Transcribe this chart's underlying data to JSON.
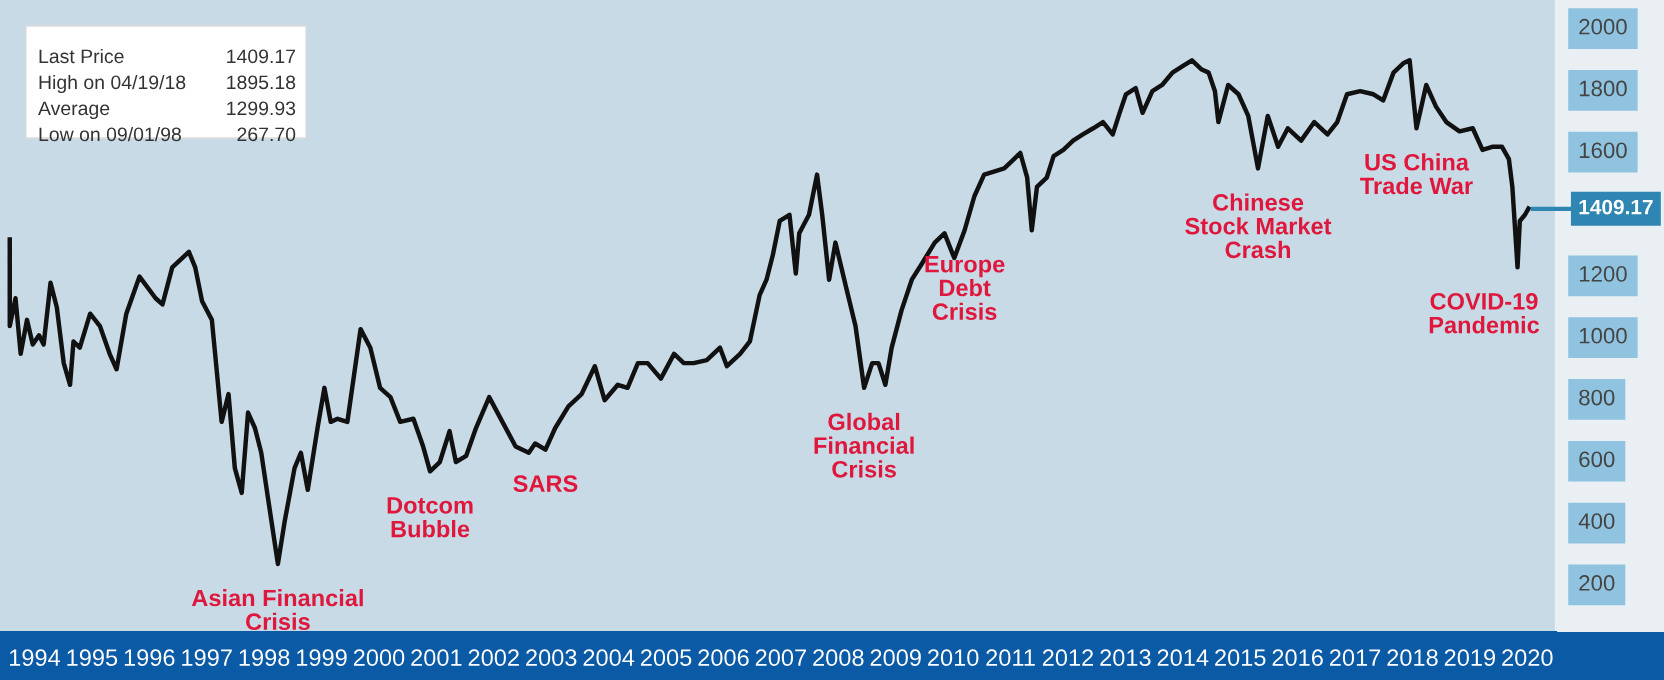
{
  "chart_data": {
    "type": "line",
    "x": [
      1993.97,
      1993.97,
      1994.07,
      1994.16,
      1994.27,
      1994.37,
      1994.48,
      1994.56,
      1994.68,
      1994.79,
      1994.91,
      1995.02,
      1995.08,
      1995.19,
      1995.37,
      1995.54,
      1995.71,
      1995.83,
      1996.0,
      1996.23,
      1996.51,
      1996.63,
      1996.8,
      1997.09,
      1997.2,
      1997.32,
      1997.49,
      1997.66,
      1997.78,
      1997.89,
      1998.01,
      1998.12,
      1998.24,
      1998.35,
      1998.47,
      1998.64,
      1998.76,
      1998.93,
      1999.04,
      1999.16,
      1999.33,
      1999.45,
      1999.56,
      1999.68,
      1999.85,
      2000.08,
      2000.25,
      2000.42,
      2000.6,
      2000.77,
      2001.0,
      2001.17,
      2001.29,
      2001.46,
      2001.63,
      2001.74,
      2001.92,
      2002.09,
      2002.32,
      2002.55,
      2002.78,
      2003.01,
      2003.12,
      2003.3,
      2003.47,
      2003.7,
      2003.93,
      2004.16,
      2004.33,
      2004.56,
      2004.73,
      2004.91,
      2005.08,
      2005.31,
      2005.54,
      2005.71,
      2005.88,
      2006.11,
      2006.34,
      2006.46,
      2006.69,
      2006.86,
      2007.03,
      2007.15,
      2007.26,
      2007.38,
      2007.55,
      2007.66,
      2007.72,
      2007.89,
      2008.03,
      2008.12,
      2008.24,
      2008.35,
      2008.53,
      2008.7,
      2008.85,
      2008.99,
      2009.1,
      2009.22,
      2009.33,
      2009.5,
      2009.68,
      2009.85,
      2010.08,
      2010.25,
      2010.42,
      2010.6,
      2010.77,
      2010.94,
      2011.11,
      2011.29,
      2011.46,
      2011.57,
      2011.69,
      2011.77,
      2011.86,
      2012.03,
      2012.15,
      2012.32,
      2012.49,
      2012.66,
      2012.84,
      2013.01,
      2013.18,
      2013.3,
      2013.41,
      2013.58,
      2013.7,
      2013.87,
      2014.04,
      2014.22,
      2014.39,
      2014.56,
      2014.73,
      2014.85,
      2014.96,
      2015.02,
      2015.19,
      2015.37,
      2015.54,
      2015.71,
      2015.88,
      2016.06,
      2016.23,
      2016.46,
      2016.69,
      2016.92,
      2017.09,
      2017.26,
      2017.49,
      2017.72,
      2017.89,
      2018.07,
      2018.24,
      2018.35,
      2018.47,
      2018.64,
      2018.81,
      2018.99,
      2019.22,
      2019.45,
      2019.62,
      2019.79,
      2019.96,
      2020.08,
      2020.14,
      2020.23,
      2020.27,
      2020.36,
      2020.42
    ],
    "series": [
      {
        "color": "#111111",
        "values": [
          1310,
          1030,
          1120,
          940,
          1050,
          970,
          1000,
          970,
          1170,
          1090,
          910,
          840,
          980,
          960,
          1070,
          1030,
          940,
          890,
          1070,
          1190,
          1120,
          1100,
          1220,
          1270,
          1220,
          1110,
          1050,
          720,
          810,
          570,
          490,
          750,
          700,
          620,
          470,
          260,
          400,
          570,
          620,
          500,
          700,
          830,
          720,
          730,
          720,
          1020,
          960,
          830,
          800,
          720,
          730,
          640,
          560,
          590,
          690,
          590,
          610,
          700,
          800,
          720,
          640,
          620,
          650,
          630,
          700,
          770,
          810,
          900,
          790,
          840,
          830,
          910,
          910,
          860,
          940,
          910,
          910,
          920,
          960,
          900,
          940,
          980,
          1130,
          1180,
          1260,
          1370,
          1390,
          1200,
          1330,
          1390,
          1520,
          1390,
          1180,
          1300,
          1160,
          1030,
          830,
          910,
          910,
          840,
          960,
          1080,
          1180,
          1230,
          1300,
          1330,
          1250,
          1340,
          1450,
          1520,
          1530,
          1540,
          1570,
          1590,
          1510,
          1340,
          1480,
          1510,
          1580,
          1600,
          1630,
          1650,
          1670,
          1690,
          1650,
          1720,
          1780,
          1800,
          1720,
          1790,
          1810,
          1850,
          1870,
          1890,
          1860,
          1850,
          1790,
          1690,
          1810,
          1780,
          1710,
          1540,
          1710,
          1610,
          1670,
          1630,
          1690,
          1650,
          1690,
          1780,
          1790,
          1780,
          1760,
          1850,
          1880,
          1890,
          1670,
          1810,
          1740,
          1690,
          1660,
          1670,
          1600,
          1610,
          1610,
          1570,
          1480,
          1220,
          1370,
          1390,
          1410
        ]
      }
    ],
    "xlim": [
      1993.8,
      2020.9
    ],
    "ylim": [
      40,
      2085
    ],
    "xticks": [
      {
        "value": 1994.4,
        "label": "1994"
      },
      {
        "value": 1995.4,
        "label": "1995"
      },
      {
        "value": 1996.4,
        "label": "1996"
      },
      {
        "value": 1997.4,
        "label": "1997"
      },
      {
        "value": 1998.4,
        "label": "1998"
      },
      {
        "value": 1999.4,
        "label": "1999"
      },
      {
        "value": 2000.4,
        "label": "2000"
      },
      {
        "value": 2001.4,
        "label": "2001"
      },
      {
        "value": 2002.4,
        "label": "2002"
      },
      {
        "value": 2003.4,
        "label": "2003"
      },
      {
        "value": 2004.4,
        "label": "2004"
      },
      {
        "value": 2005.4,
        "label": "2005"
      },
      {
        "value": 2006.4,
        "label": "2006"
      },
      {
        "value": 2007.4,
        "label": "2007"
      },
      {
        "value": 2008.4,
        "label": "2008"
      },
      {
        "value": 2009.4,
        "label": "2009"
      },
      {
        "value": 2010.4,
        "label": "2010"
      },
      {
        "value": 2011.4,
        "label": "2011"
      },
      {
        "value": 2012.4,
        "label": "2012"
      },
      {
        "value": 2013.4,
        "label": "2013"
      },
      {
        "value": 2014.4,
        "label": "2014"
      },
      {
        "value": 2015.4,
        "label": "2015"
      },
      {
        "value": 2016.4,
        "label": "2016"
      },
      {
        "value": 2017.4,
        "label": "2017"
      },
      {
        "value": 2018.4,
        "label": "2018"
      },
      {
        "value": 2019.4,
        "label": "2019"
      },
      {
        "value": 2020.4,
        "label": "2020"
      }
    ],
    "yticks": [
      200,
      400,
      600,
      800,
      1000,
      1200,
      1600,
      1800,
      2000
    ],
    "ref_lines": [
      {
        "axis": "y",
        "value": 1409.17,
        "label": "1409.17",
        "color": "#2f86b3"
      }
    ],
    "annotations": [
      "Last Price",
      "1409.17",
      "High on 04/19/18",
      "1895.18",
      "Average",
      "1299.93",
      "Low on 09/01/98",
      "267.70",
      {
        "text": "Asian Financial\nCrisis",
        "x": 1998.64,
        "y": 260
      },
      {
        "text": "Dotcom\nBubble",
        "x": 2001.29,
        "y": 560
      },
      {
        "text": "SARS",
        "x": 2003.3,
        "y": 630
      },
      {
        "text": "Global\nFinancial\nCrisis",
        "x": 2008.85,
        "y": 830
      },
      {
        "text": "Europe\nDebt\nCrisis",
        "x": 2010.6,
        "y": 1340
      },
      {
        "text": "Chinese\nStock Market\nCrash",
        "x": 2015.71,
        "y": 1540
      },
      {
        "text": "US China\nTrade War",
        "x": 2018.47,
        "y": 1670
      },
      {
        "text": "COVID-19\nPandemic",
        "x": 2020.23,
        "y": 1220
      }
    ]
  }
}
